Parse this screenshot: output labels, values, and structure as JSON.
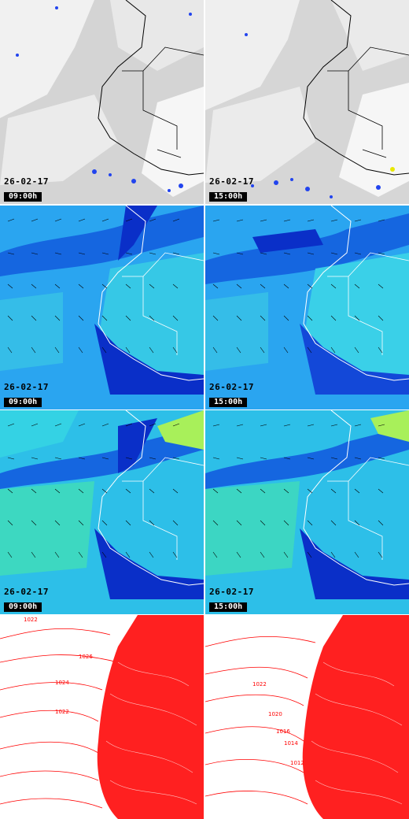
{
  "rows": [
    {
      "type": "satellite",
      "panels": [
        {
          "date": "26-02-17",
          "time": "09:00h"
        },
        {
          "date": "26-02-17",
          "time": "15:00h"
        }
      ]
    },
    {
      "type": "wind",
      "panels": [
        {
          "date": "26-02-17",
          "time": "09:00h"
        },
        {
          "date": "26-02-17",
          "time": "15:00h"
        }
      ]
    },
    {
      "type": "wind",
      "panels": [
        {
          "date": "26-02-17",
          "time": "09:00h"
        },
        {
          "date": "26-02-17",
          "time": "15:00h"
        }
      ]
    },
    {
      "type": "pressure",
      "panels": [
        {
          "isobar_labels": [
            "1022",
            "1026",
            "1024",
            "1022"
          ]
        },
        {
          "isobar_labels": [
            "1022",
            "1020",
            "1016",
            "1014",
            "1012"
          ]
        }
      ]
    }
  ],
  "colors": {
    "satellite_bg": "#d8d8d8",
    "cloud": "#f2f2f2",
    "wind_ocean": "#2aa5f0",
    "wind_dark": "#0a2fc8",
    "wind_light": "#36e0e0",
    "isobar": "#ff0000"
  }
}
